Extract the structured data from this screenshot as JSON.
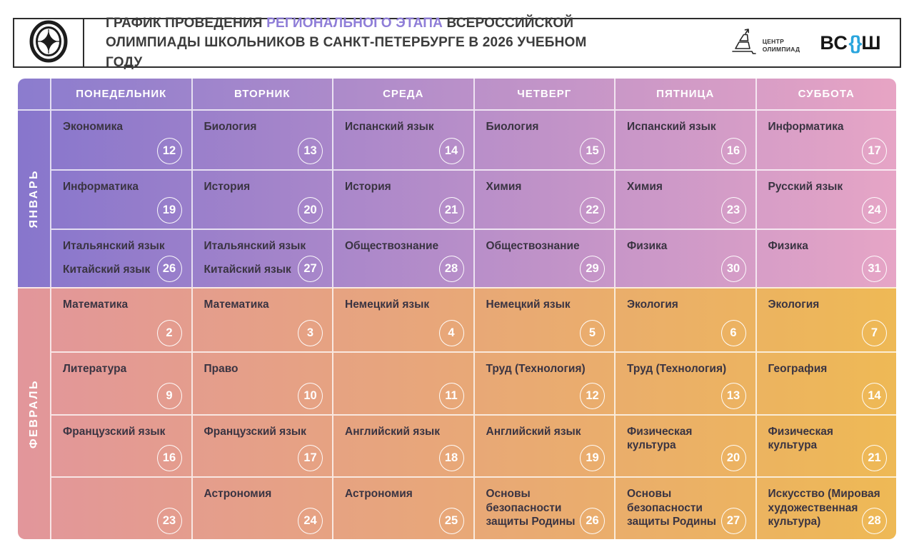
{
  "header": {
    "title": {
      "prefix": "ГРАФИК ПРОВЕДЕНИЯ ",
      "highlight": "РЕГИОНАЛЬНОГО ЭТАПА",
      "suffix": " ВСЕРОССИЙСКОЙ ОЛИМПИАДЫ ШКОЛЬНИКОВ В САНКТ-ПЕТЕРБУРГЕ В 2026 УЧЕБНОМ ГОДУ"
    },
    "logos": {
      "target_logo": "target-star-emblem",
      "center_olympiad": [
        "ЦЕНТР",
        "ОЛИМПИАД"
      ],
      "vsosh_left": "ВС",
      "vsosh_braces": "{}",
      "vsosh_right": "Ш"
    }
  },
  "weekdays": [
    "ПОНЕДЕЛЬНИК",
    "ВТОРНИК",
    "СРЕДА",
    "ЧЕТВЕРГ",
    "ПЯТНИЦА",
    "СУББОТА"
  ],
  "months": [
    {
      "name": "ЯНВАРЬ",
      "gradient": [
        "#8776cc",
        "#e6a5c6"
      ],
      "rows": [
        [
          {
            "subjects": [
              "Экономика"
            ],
            "day": 12
          },
          {
            "subjects": [
              "Биология"
            ],
            "day": 13
          },
          {
            "subjects": [
              "Испанский язык"
            ],
            "day": 14
          },
          {
            "subjects": [
              "Биология"
            ],
            "day": 15
          },
          {
            "subjects": [
              "Испанский язык"
            ],
            "day": 16
          },
          {
            "subjects": [
              "Информатика"
            ],
            "day": 17
          }
        ],
        [
          {
            "subjects": [
              "Информатика"
            ],
            "day": 19
          },
          {
            "subjects": [
              "История"
            ],
            "day": 20
          },
          {
            "subjects": [
              "История"
            ],
            "day": 21
          },
          {
            "subjects": [
              "Химия"
            ],
            "day": 22
          },
          {
            "subjects": [
              "Химия"
            ],
            "day": 23
          },
          {
            "subjects": [
              "Русский язык"
            ],
            "day": 24
          }
        ],
        [
          {
            "subjects": [
              "Итальянский язык",
              "Китайский язык"
            ],
            "day": 26
          },
          {
            "subjects": [
              "Итальянский язык",
              "Китайский язык"
            ],
            "day": 27
          },
          {
            "subjects": [
              "Обществознание"
            ],
            "day": 28
          },
          {
            "subjects": [
              "Обществознание"
            ],
            "day": 29
          },
          {
            "subjects": [
              "Физика"
            ],
            "day": 30
          },
          {
            "subjects": [
              "Физика"
            ],
            "day": 31
          }
        ]
      ]
    },
    {
      "name": "ФЕВРАЛЬ",
      "gradient": [
        "#e2969b",
        "#eeb955"
      ],
      "rows": [
        [
          {
            "subjects": [
              "Математика"
            ],
            "day": 2
          },
          {
            "subjects": [
              "Математика"
            ],
            "day": 3
          },
          {
            "subjects": [
              "Немецкий язык"
            ],
            "day": 4
          },
          {
            "subjects": [
              "Немецкий язык"
            ],
            "day": 5
          },
          {
            "subjects": [
              "Экология"
            ],
            "day": 6
          },
          {
            "subjects": [
              "Экология"
            ],
            "day": 7
          }
        ],
        [
          {
            "subjects": [
              "Литература"
            ],
            "day": 9
          },
          {
            "subjects": [
              "Право"
            ],
            "day": 10
          },
          {
            "subjects": [],
            "day": 11
          },
          {
            "subjects": [
              "Труд (Технология)"
            ],
            "day": 12
          },
          {
            "subjects": [
              "Труд (Технология)"
            ],
            "day": 13
          },
          {
            "subjects": [
              "География"
            ],
            "day": 14
          }
        ],
        [
          {
            "subjects": [
              "Французский язык"
            ],
            "day": 16
          },
          {
            "subjects": [
              "Французский язык"
            ],
            "day": 17
          },
          {
            "subjects": [
              "Английский язык"
            ],
            "day": 18
          },
          {
            "subjects": [
              "Английский язык"
            ],
            "day": 19
          },
          {
            "subjects": [
              "Физическая культура"
            ],
            "day": 20
          },
          {
            "subjects": [
              "Физическая культура"
            ],
            "day": 21
          }
        ],
        [
          {
            "subjects": [],
            "day": 23
          },
          {
            "subjects": [
              "Астрономия"
            ],
            "day": 24
          },
          {
            "subjects": [
              "Астрономия"
            ],
            "day": 25
          },
          {
            "subjects": [
              "Основы безопасности защиты Родины"
            ],
            "day": 26
          },
          {
            "subjects": [
              "Основы безопасности защиты Родины"
            ],
            "day": 27
          },
          {
            "subjects": [
              "Искусство (Мировая художественная культура)"
            ],
            "day": 28
          }
        ]
      ]
    }
  ],
  "colors": {
    "header_gradient": [
      "#8b7cce",
      "#e7a4c4"
    ],
    "title_highlight": "#8f7ed8",
    "vsosh_braces_color": "#29a5dd",
    "grid_line": "rgba(255,255,255,0.75)",
    "subject_text": "#3a3442"
  }
}
